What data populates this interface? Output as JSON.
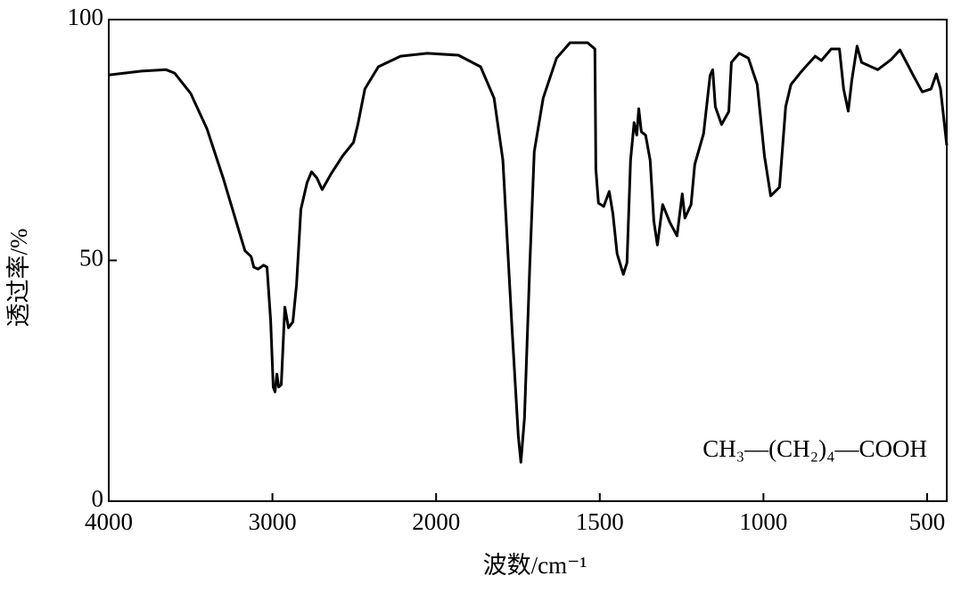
{
  "chart_data": {
    "type": "line",
    "x_label": "波数/cm⁻¹",
    "y_label": "透过率/%",
    "annotation": "CH₃—(CH₂)₄—COOH",
    "color": "#000000",
    "xlim": [
      4000,
      440
    ],
    "xticks": [
      4000,
      3000,
      2000,
      1500,
      1000,
      500
    ],
    "ylim": [
      0,
      100
    ],
    "yticks": [
      0,
      50,
      100
    ],
    "x": [
      4000,
      3800,
      3650,
      3598,
      3500,
      3400,
      3300,
      3200,
      3168,
      3130,
      3114,
      3087,
      3054,
      3033,
      3011,
      2995,
      2984,
      2973,
      2962,
      2946,
      2924,
      2902,
      2875,
      2853,
      2826,
      2788,
      2761,
      2728,
      2696,
      2641,
      2571,
      2505,
      2478,
      2435,
      2353,
      2217,
      2054,
      1932,
      1864,
      1823,
      1796,
      1768,
      1749,
      1741,
      1730,
      1714,
      1700,
      1673,
      1632,
      1591,
      1537,
      1515,
      1512,
      1504,
      1488,
      1471,
      1460,
      1447,
      1428,
      1417,
      1406,
      1395,
      1387,
      1381,
      1373,
      1360,
      1346,
      1335,
      1324,
      1308,
      1286,
      1264,
      1248,
      1240,
      1221,
      1210,
      1183,
      1163,
      1155,
      1147,
      1128,
      1106,
      1098,
      1074,
      1046,
      1019,
      997,
      978,
      951,
      932,
      916,
      883,
      842,
      823,
      793,
      768,
      755,
      741,
      730,
      714,
      700,
      651,
      610,
      583,
      542,
      515,
      488,
      472,
      459,
      440
    ],
    "values": [
      88.5,
      89.3,
      89.6,
      88.9,
      84.7,
      77.3,
      67,
      55.6,
      52,
      50.8,
      48.6,
      48.2,
      49,
      48.6,
      37.5,
      23.7,
      22.7,
      26.4,
      23.7,
      24.2,
      40.3,
      36,
      37.2,
      44.9,
      60.6,
      66.2,
      68.4,
      67.1,
      64.7,
      68,
      71.7,
      74.5,
      78.2,
      85.6,
      90.2,
      92.4,
      93,
      92.6,
      90.2,
      83.7,
      70.8,
      35.7,
      13.5,
      8.1,
      17.2,
      48.6,
      72.6,
      83.7,
      92,
      95.2,
      95.2,
      93.9,
      68.9,
      61.9,
      61.2,
      64.3,
      59.7,
      51.4,
      47.1,
      49.5,
      70.8,
      78.6,
      76,
      81.5,
      76.7,
      76,
      70.8,
      58.2,
      53.2,
      61.6,
      57.9,
      55.1,
      63.8,
      58.8,
      61.6,
      69.9,
      76.3,
      88.4,
      89.6,
      81.9,
      78.2,
      80.9,
      91.1,
      93,
      92,
      86.5,
      71.7,
      63.4,
      65.2,
      81.9,
      86.5,
      89.3,
      92.4,
      91.5,
      93.9,
      93.9,
      85.6,
      81,
      87.4,
      94.5,
      91.1,
      89.6,
      91.7,
      93.7,
      88.4,
      85,
      85.6,
      88.7,
      85.6,
      73.9
    ]
  }
}
